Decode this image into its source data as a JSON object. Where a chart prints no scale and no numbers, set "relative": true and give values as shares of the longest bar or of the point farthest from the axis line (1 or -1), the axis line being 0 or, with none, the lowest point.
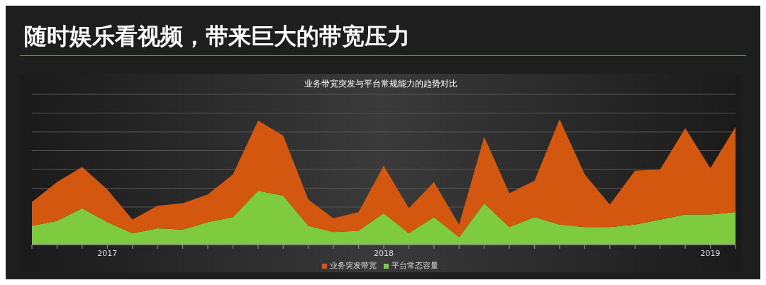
{
  "chart_data": {
    "type": "area",
    "title": "随时娱乐看视频，带来巨大的带宽压力",
    "subtitle": "业务带宽突发与平台常规能力的趋势对比",
    "relative": true,
    "stacked": true,
    "grid": "y",
    "legend": "bottom",
    "categories": [
      null,
      null,
      null,
      "2017",
      null,
      null,
      null,
      null,
      null,
      null,
      null,
      null,
      null,
      null,
      "2018",
      null,
      null,
      null,
      null,
      null,
      null,
      null,
      null,
      null,
      null,
      null,
      null,
      "2019",
      null
    ],
    "series": [
      {
        "name": "平台常态容量",
        "color": "#7fcb3f",
        "values": [
          0.15,
          0.19,
          0.29,
          0.18,
          0.09,
          0.13,
          0.12,
          0.18,
          0.22,
          0.43,
          0.39,
          0.15,
          0.1,
          0.11,
          0.25,
          0.09,
          0.22,
          0.06,
          0.33,
          0.14,
          0.22,
          0.16,
          0.14,
          0.14,
          0.16,
          0.2,
          0.24,
          0.24,
          0.26
        ]
      },
      {
        "name": "业务突发带宽",
        "color": "#d4570f",
        "values": [
          0.19,
          0.31,
          0.33,
          0.26,
          0.11,
          0.18,
          0.21,
          0.22,
          0.34,
          0.56,
          0.48,
          0.21,
          0.11,
          0.15,
          0.38,
          0.2,
          0.28,
          0.1,
          0.53,
          0.27,
          0.29,
          0.84,
          0.42,
          0.18,
          0.43,
          0.4,
          0.69,
          0.37,
          0.68
        ]
      }
    ]
  }
}
